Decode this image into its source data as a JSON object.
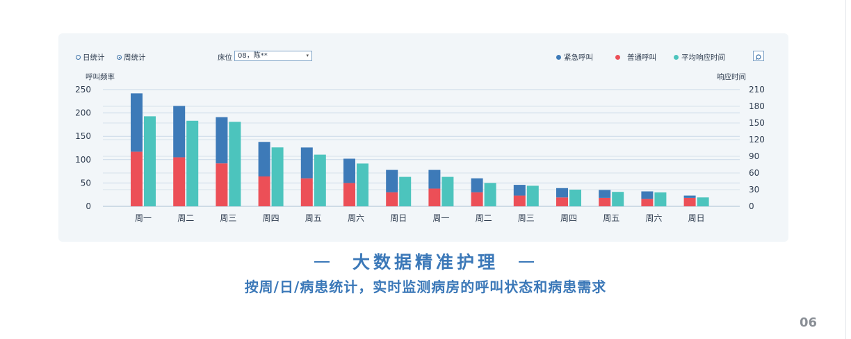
{
  "toolbar": {
    "radio_day": "日统计",
    "radio_week": "周统计",
    "bed_label": "床位",
    "bed_value": "08，陈**"
  },
  "legend": [
    {
      "label": "紧急呼叫",
      "color": "#3d7ab8"
    },
    {
      "label": "普通呼叫",
      "color": "#ec4f57"
    },
    {
      "label": "平均响应时间",
      "color": "#4cc4bd"
    }
  ],
  "chart_data": {
    "type": "bar",
    "ylabel": "呼叫频率",
    "y2label": "响应时间",
    "ylim": [
      0,
      250
    ],
    "y2lim": [
      0,
      210
    ],
    "yticks": [
      0,
      50,
      100,
      150,
      200,
      250
    ],
    "y2ticks": [
      0,
      30,
      60,
      90,
      120,
      150,
      180,
      210
    ],
    "categories": [
      "周一",
      "周二",
      "周三",
      "周四",
      "周五",
      "周六",
      "周日",
      "周一",
      "周二",
      "周三",
      "周四",
      "周五",
      "周六",
      "周日"
    ],
    "series": [
      {
        "name": "普通呼叫",
        "axis": "left",
        "stack": "calls",
        "values": [
          117,
          105,
          92,
          64,
          60,
          50,
          30,
          38,
          30,
          23,
          19,
          18,
          16,
          18
        ]
      },
      {
        "name": "紧急呼叫",
        "axis": "left",
        "stack": "calls",
        "values": [
          125,
          110,
          99,
          74,
          66,
          52,
          48,
          40,
          30,
          23,
          20,
          17,
          16,
          5
        ]
      },
      {
        "name": "平均响应时间",
        "axis": "right",
        "values": [
          162,
          154,
          152,
          106,
          93,
          77,
          53,
          53,
          42,
          37,
          30,
          26,
          25,
          16
        ]
      }
    ],
    "colors": {
      "emergency": "#3d7ab8",
      "normal": "#ec4f57",
      "response": "#4cc4bd",
      "grid": "#c9d9e7"
    }
  },
  "headline": "大数据精准护理",
  "subline": "按周/日/病患统计，实时监测病房的呼叫状态和病患需求",
  "page_number": "06"
}
